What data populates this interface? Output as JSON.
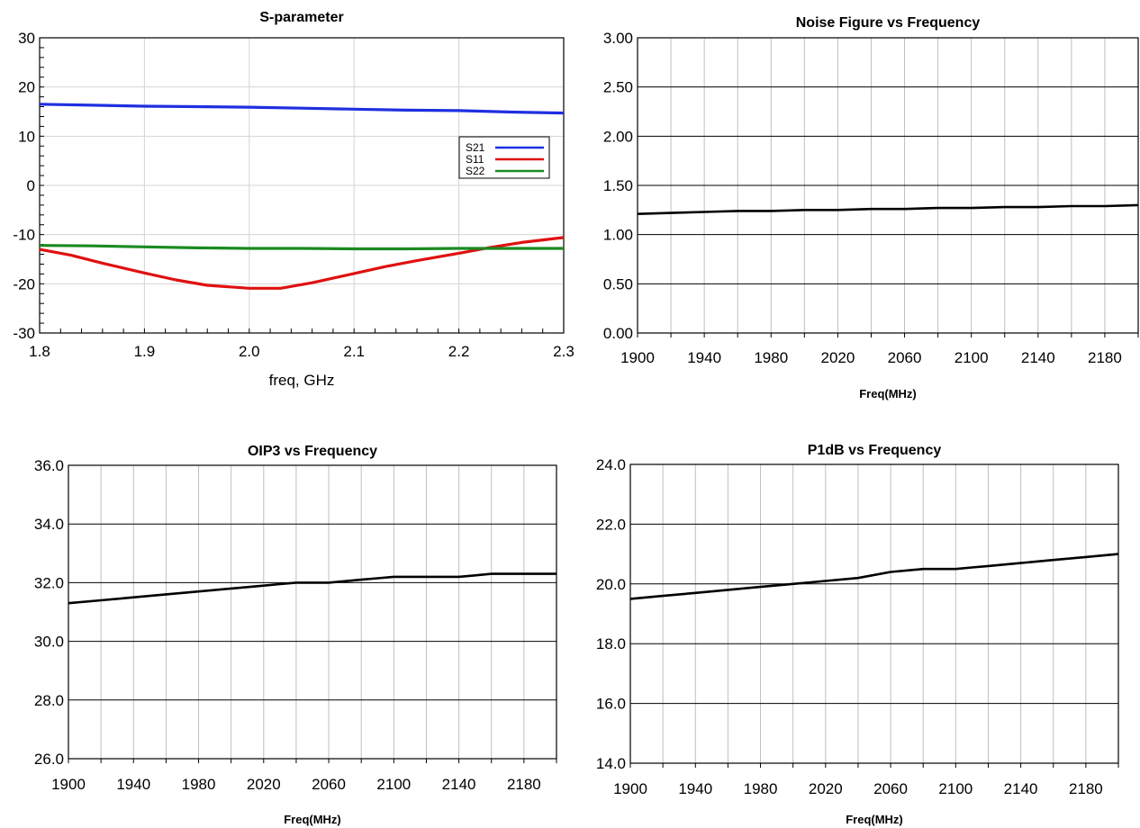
{
  "chart_data": [
    {
      "id": "sparam",
      "type": "line",
      "title": "S-parameter",
      "xlabel": "freq, GHz",
      "ylabel": "",
      "xlim": [
        1.8,
        2.3
      ],
      "ylim": [
        -30,
        30
      ],
      "xticks": [
        "1.8",
        "1.9",
        "2.0",
        "2.1",
        "2.2",
        "2.3"
      ],
      "yticks": [
        "30",
        "20",
        "10",
        "0",
        "-10",
        "-20",
        "-30"
      ],
      "grid": true,
      "legend": "right",
      "series": [
        {
          "name": "S21",
          "color": "#1f2fe0",
          "x": [
            1.8,
            1.85,
            1.9,
            1.95,
            2.0,
            2.05,
            2.1,
            2.15,
            2.2,
            2.25,
            2.3
          ],
          "y": [
            16.5,
            16.3,
            16.1,
            16.0,
            15.9,
            15.7,
            15.5,
            15.3,
            15.2,
            14.9,
            14.7
          ]
        },
        {
          "name": "S11",
          "color": "#e01010",
          "x": [
            1.8,
            1.83,
            1.86,
            1.9,
            1.93,
            1.96,
            2.0,
            2.03,
            2.06,
            2.1,
            2.13,
            2.16,
            2.2,
            2.23,
            2.26,
            2.3
          ],
          "y": [
            -13.0,
            -14.2,
            -15.8,
            -17.8,
            -19.2,
            -20.3,
            -20.9,
            -20.9,
            -19.8,
            -17.9,
            -16.5,
            -15.3,
            -13.8,
            -12.6,
            -11.6,
            -10.6
          ]
        },
        {
          "name": "S22",
          "color": "#1a8a20",
          "x": [
            1.8,
            1.85,
            1.9,
            1.95,
            2.0,
            2.05,
            2.1,
            2.15,
            2.2,
            2.25,
            2.3
          ],
          "y": [
            -12.2,
            -12.3,
            -12.5,
            -12.7,
            -12.8,
            -12.8,
            -12.9,
            -12.9,
            -12.8,
            -12.8,
            -12.8
          ]
        }
      ]
    },
    {
      "id": "nf",
      "type": "line",
      "title": "Noise Figure vs Frequency",
      "xlabel": "Freq(MHz)",
      "ylabel": "",
      "xlim": [
        1900,
        2200
      ],
      "ylim": [
        0,
        3
      ],
      "xticks": [
        "1900",
        "1940",
        "1980",
        "2020",
        "2060",
        "2100",
        "2140",
        "2180"
      ],
      "yticks": [
        "3.00",
        "2.50",
        "2.00",
        "1.50",
        "1.00",
        "0.50",
        "0.00"
      ],
      "grid": true,
      "series": [
        {
          "color": "#000000",
          "x": [
            1900,
            1920,
            1940,
            1960,
            1980,
            2000,
            2020,
            2040,
            2060,
            2080,
            2100,
            2120,
            2140,
            2160,
            2180,
            2200
          ],
          "y": [
            1.21,
            1.22,
            1.23,
            1.24,
            1.24,
            1.25,
            1.25,
            1.26,
            1.26,
            1.27,
            1.27,
            1.28,
            1.28,
            1.29,
            1.29,
            1.3
          ]
        }
      ]
    },
    {
      "id": "oip3",
      "type": "line",
      "title": "OIP3 vs Frequency",
      "xlabel": "Freq(MHz)",
      "ylabel": "",
      "xlim": [
        1900,
        2200
      ],
      "ylim": [
        26,
        36
      ],
      "xticks": [
        "1900",
        "1940",
        "1980",
        "2020",
        "2060",
        "2100",
        "2140",
        "2180"
      ],
      "yticks": [
        "36.0",
        "34.0",
        "32.0",
        "30.0",
        "28.0",
        "26.0"
      ],
      "grid": true,
      "series": [
        {
          "color": "#000000",
          "x": [
            1900,
            1920,
            1940,
            1960,
            1980,
            2000,
            2020,
            2030,
            2040,
            2060,
            2080,
            2090,
            2100,
            2120,
            2140,
            2150,
            2160,
            2180,
            2200
          ],
          "y": [
            31.3,
            31.4,
            31.5,
            31.6,
            31.7,
            31.8,
            31.9,
            31.95,
            32.0,
            32.0,
            32.1,
            32.15,
            32.2,
            32.2,
            32.2,
            32.25,
            32.3,
            32.3,
            32.3
          ]
        }
      ]
    },
    {
      "id": "p1db",
      "type": "line",
      "title": "P1dB vs Frequency",
      "xlabel": "Freq(MHz)",
      "ylabel": "",
      "xlim": [
        1900,
        2200
      ],
      "ylim": [
        14,
        24
      ],
      "xticks": [
        "1900",
        "1940",
        "1980",
        "2020",
        "2060",
        "2100",
        "2140",
        "2180"
      ],
      "yticks": [
        "24.0",
        "22.0",
        "20.0",
        "18.0",
        "16.0",
        "14.0"
      ],
      "grid": true,
      "series": [
        {
          "color": "#000000",
          "x": [
            1900,
            1920,
            1940,
            1960,
            1980,
            2000,
            2020,
            2040,
            2060,
            2080,
            2100,
            2110,
            2120,
            2140,
            2160,
            2180,
            2200
          ],
          "y": [
            19.5,
            19.6,
            19.7,
            19.8,
            19.9,
            20.0,
            20.1,
            20.2,
            20.4,
            20.5,
            20.5,
            20.55,
            20.6,
            20.7,
            20.8,
            20.9,
            21.0
          ]
        }
      ]
    }
  ]
}
